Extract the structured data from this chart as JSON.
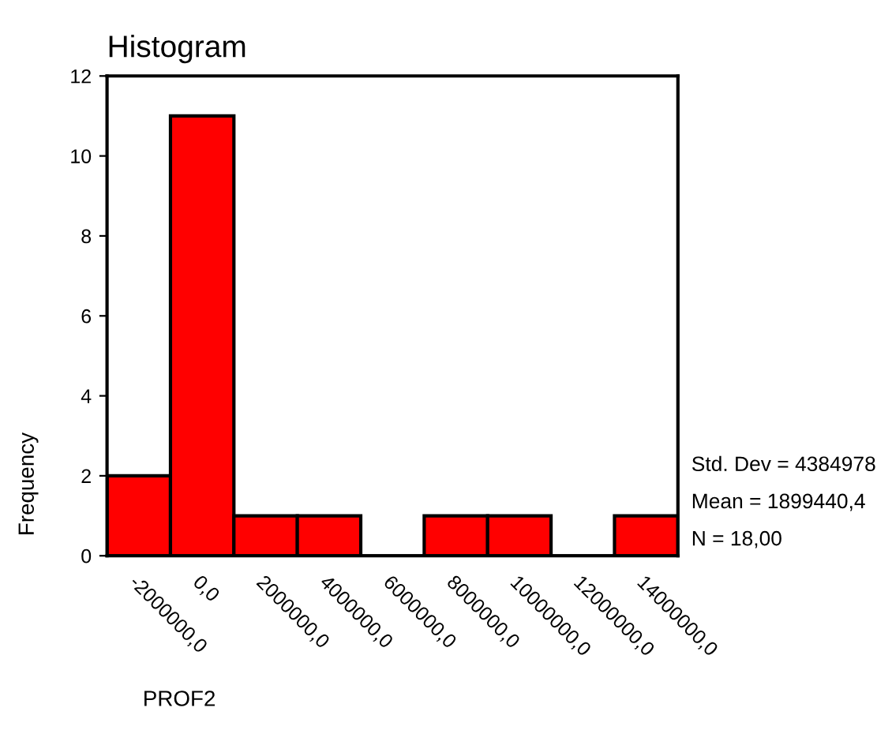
{
  "chart_data": {
    "type": "histogram",
    "title": "Histogram",
    "xlabel": "PROF2",
    "ylabel": "Frequency",
    "bins": [
      -3000000,
      -1000000,
      1000000,
      3000000,
      5000000,
      7000000,
      9000000,
      11000000,
      13000000,
      15000000
    ],
    "values": [
      2,
      11,
      1,
      1,
      0,
      1,
      1,
      0,
      1
    ],
    "color": "#ff0000",
    "xlim": [
      -3000000,
      15000000
    ],
    "xticks": [
      {
        "value": -2000000,
        "label": "-2000000,0"
      },
      {
        "value": 0,
        "label": "0,0"
      },
      {
        "value": 2000000,
        "label": "2000000,0"
      },
      {
        "value": 4000000,
        "label": "4000000,0"
      },
      {
        "value": 6000000,
        "label": "6000000,0"
      },
      {
        "value": 8000000,
        "label": "8000000,0"
      },
      {
        "value": 10000000,
        "label": "10000000,0"
      },
      {
        "value": 12000000,
        "label": "12000000,0"
      },
      {
        "value": 14000000,
        "label": "14000000,0"
      }
    ],
    "ylim": [
      0,
      12
    ],
    "yticks": [
      0,
      2,
      4,
      6,
      8,
      10,
      12
    ],
    "annotations": [
      "Std. Dev = 4384978",
      "Mean = 1899440,4",
      "N = 18,00"
    ],
    "grid": false,
    "legend": false
  }
}
